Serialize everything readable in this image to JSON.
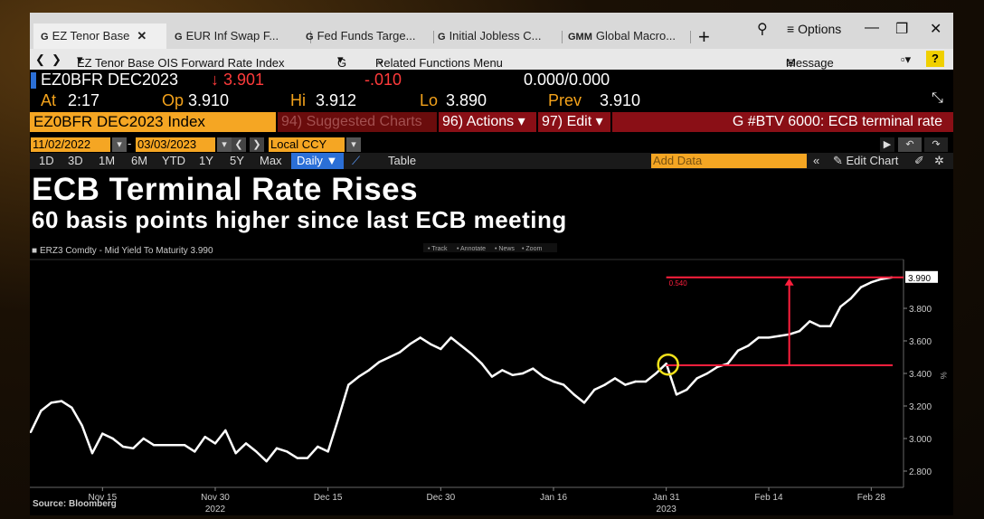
{
  "tabs": [
    {
      "icon": "G",
      "label": "EZ Tenor Base"
    },
    {
      "icon": "G",
      "label": "EUR Inf Swap F..."
    },
    {
      "icon": "G",
      "label": "Fed Funds Targe..."
    },
    {
      "icon": "G",
      "label": "Initial Jobless C..."
    },
    {
      "icon": "GMM",
      "label": "Global Macro..."
    }
  ],
  "window": {
    "options": "Options"
  },
  "nav": {
    "title": "EZ Tenor Base OIS Forward Rate Index",
    "g": "G",
    "related": "Related Functions Menu",
    "message": "Message",
    "help": "?"
  },
  "quote": {
    "ticker": "EZ0BFR DEC2023",
    "last": "3.901",
    "change": "-.010",
    "bidask": "0.000/0.000",
    "at_label": "At",
    "at_time": "2:17",
    "op_label": "Op",
    "op": "3.910",
    "hi_label": "Hi",
    "hi": "3.912",
    "lo_label": "Lo",
    "lo": "3.890",
    "prev_label": "Prev",
    "prev": "3.910"
  },
  "bar": {
    "security": "EZ0BFR DEC2023 Index",
    "suggested": "94) Suggested Charts",
    "actions": "96) Actions",
    "edit": "97) Edit",
    "btv": "G #BTV 6000: ECB terminal rate"
  },
  "dates": {
    "start": "11/02/2022",
    "end": "03/03/2023",
    "ccy": "Local CCY"
  },
  "periods": [
    "1D",
    "3D",
    "1M",
    "6M",
    "YTD",
    "1Y",
    "5Y",
    "Max"
  ],
  "daily": "Daily",
  "table": "Table",
  "add_data": "Add Data",
  "edit_chart": "Edit Chart",
  "headline": "ECB Terminal Rate Rises",
  "subline": "60 basis points higher since last ECB meeting",
  "source": "Source: Bloomberg",
  "chart_data": {
    "type": "line",
    "legend": "ERZ3 Comdty - Mid Yield To Maturity 3.990",
    "toolbar": [
      "Track",
      "Annotate",
      "News",
      "Zoom"
    ],
    "annotation_label": "0.540",
    "last_value_label": "3.990",
    "ylim": [
      2.7,
      4.1
    ],
    "yticks": [
      "2.800",
      "3.000",
      "3.200",
      "3.400",
      "3.600",
      "3.800"
    ],
    "xticks": [
      {
        "label": "Nov 15",
        "sub": "",
        "i": 7
      },
      {
        "label": "Nov 30",
        "sub": "2022",
        "i": 18
      },
      {
        "label": "Dec 15",
        "sub": "",
        "i": 29
      },
      {
        "label": "Dec 30",
        "sub": "",
        "i": 40
      },
      {
        "label": "Jan 16",
        "sub": "",
        "i": 51
      },
      {
        "label": "Jan 31",
        "sub": "2023",
        "i": 62
      },
      {
        "label": "Feb 14",
        "sub": "",
        "i": 72
      },
      {
        "label": "Feb 28",
        "sub": "",
        "i": 82
      }
    ],
    "values": [
      3.04,
      3.17,
      3.22,
      3.23,
      3.19,
      3.08,
      2.91,
      3.03,
      3.0,
      2.95,
      2.94,
      3.0,
      2.96,
      2.96,
      2.96,
      2.96,
      2.92,
      3.01,
      2.97,
      3.05,
      2.91,
      2.97,
      2.92,
      2.86,
      2.94,
      2.92,
      2.88,
      2.88,
      2.95,
      2.92,
      3.12,
      3.33,
      3.38,
      3.42,
      3.47,
      3.5,
      3.53,
      3.58,
      3.62,
      3.58,
      3.55,
      3.62,
      3.57,
      3.52,
      3.46,
      3.38,
      3.42,
      3.39,
      3.4,
      3.43,
      3.38,
      3.35,
      3.33,
      3.27,
      3.22,
      3.3,
      3.33,
      3.37,
      3.33,
      3.35,
      3.35,
      3.4,
      3.46,
      3.27,
      3.3,
      3.37,
      3.4,
      3.44,
      3.46,
      3.54,
      3.57,
      3.62,
      3.62,
      3.63,
      3.64,
      3.66,
      3.72,
      3.69,
      3.69,
      3.81,
      3.86,
      3.93,
      3.96,
      3.98,
      3.99
    ],
    "line_color": "#ffffff",
    "annotation_color": "#ff1f3d",
    "annotation_from": 3.45,
    "annotation_to": 3.99,
    "circle_index": 62
  }
}
